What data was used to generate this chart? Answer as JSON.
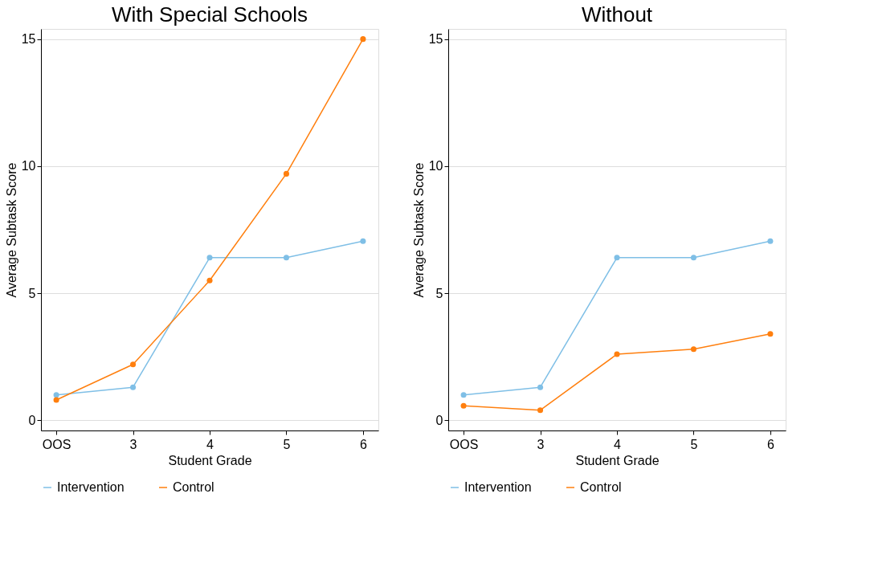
{
  "chart_data": [
    {
      "type": "line",
      "title": "With Special Schools",
      "xlabel": "Student Grade",
      "ylabel": "Average Subtask Score",
      "categories": [
        "OOS",
        "3",
        "4",
        "5",
        "6"
      ],
      "ylim": [
        -0.4,
        15.4
      ],
      "yticks": [
        0,
        5,
        10,
        15
      ],
      "grid": "y",
      "legend": "bottom",
      "marker": "circle",
      "line_style": "solid",
      "series": [
        {
          "name": "Intervention",
          "color": "#7fbfe6",
          "values": [
            1.0,
            1.3,
            6.4,
            6.4,
            7.05
          ]
        },
        {
          "name": "Control",
          "color": "#ff7f0e",
          "values": [
            0.8,
            2.2,
            5.5,
            9.7,
            15.0
          ]
        }
      ]
    },
    {
      "type": "line",
      "title": "Without",
      "xlabel": "Student Grade",
      "ylabel": "Average Subtask Score",
      "categories": [
        "OOS",
        "3",
        "4",
        "5",
        "6"
      ],
      "ylim": [
        -0.4,
        15.4
      ],
      "yticks": [
        0,
        5,
        10,
        15
      ],
      "grid": "y",
      "legend": "bottom",
      "marker": "circle",
      "line_style": "solid",
      "series": [
        {
          "name": "Intervention",
          "color": "#7fbfe6",
          "values": [
            1.0,
            1.3,
            6.4,
            6.4,
            7.05
          ]
        },
        {
          "name": "Control",
          "color": "#ff7f0e",
          "values": [
            0.57,
            0.4,
            2.6,
            2.8,
            3.4
          ]
        }
      ]
    }
  ]
}
